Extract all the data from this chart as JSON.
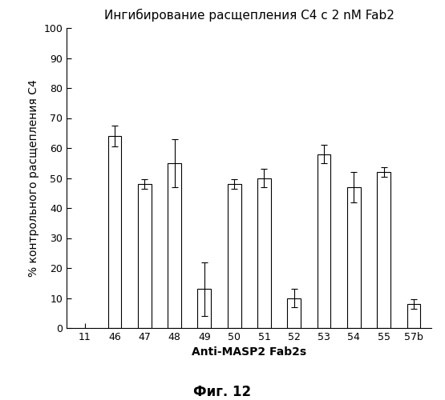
{
  "categories": [
    "11",
    "46",
    "47",
    "48",
    "49",
    "50",
    "51",
    "52",
    "53",
    "54",
    "55",
    "57b"
  ],
  "values": [
    0,
    64,
    48,
    55,
    13,
    48,
    50,
    10,
    58,
    47,
    52,
    8
  ],
  "errors": [
    0,
    3.5,
    1.5,
    8,
    9,
    1.5,
    3,
    3,
    3,
    5,
    1.5,
    1.5
  ],
  "bar_color": "#ffffff",
  "bar_edge_color": "#000000",
  "title": "Ингибирование расщепления C4 с 2 nM Fab2",
  "xlabel": "Anti-MASP2 Fab2s",
  "ylabel": "% контрольного расщепления C4",
  "figcaption": "Фиг. 12",
  "ylim": [
    0,
    100
  ],
  "yticks": [
    0,
    10,
    20,
    30,
    40,
    50,
    60,
    70,
    80,
    90,
    100
  ],
  "title_fontsize": 11,
  "label_fontsize": 10,
  "tick_fontsize": 9,
  "caption_fontsize": 12,
  "bar_width": 0.45
}
